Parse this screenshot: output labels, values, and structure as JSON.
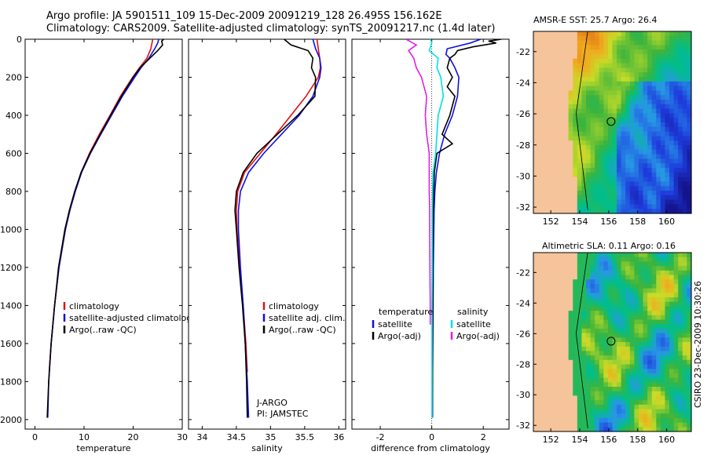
{
  "header": {
    "line1": "Argo profile: JA 5901511_109 15-Dec-2009 20091219_128 26.495S 156.162E",
    "line2": "Climatology: CARS2009. Satellite-adjusted climatology: synTS_20091217.nc (1.4d later)"
  },
  "side_note": "CSIRO 23-Dec-2009 10:30:26",
  "credit": {
    "line1": "J-ARGO",
    "line2": "PI: JAMSTEC"
  },
  "colors": {
    "climatology": "#e01010",
    "satellite": "#1010e0",
    "argo": "#000000",
    "sat_sal": "#00e0e0",
    "argo_sal": "#e020e0"
  },
  "chart_data": [
    {
      "id": "temperature",
      "type": "line",
      "xlabel": "temperature",
      "ylabel": "",
      "xlim": [
        -2,
        30
      ],
      "ylim": [
        2050,
        0
      ],
      "xticks": [
        0,
        10,
        20,
        30
      ],
      "yticks": [
        0,
        200,
        400,
        600,
        800,
        1000,
        1200,
        1400,
        1600,
        1800,
        2000
      ],
      "legend": [
        "climatology",
        "satellite-adjusted climatology",
        "Argo(..raw -QC)"
      ],
      "series": [
        {
          "name": "climatology",
          "color": "#e01010",
          "depth": [
            0,
            50,
            100,
            150,
            200,
            300,
            400,
            500,
            600,
            700,
            800,
            900,
            1000,
            1200,
            1400,
            1600,
            1750
          ],
          "values": [
            24.0,
            23.6,
            22.8,
            21.3,
            19.9,
            17.4,
            15.3,
            13.1,
            11.1,
            9.4,
            8.2,
            7.1,
            6.2,
            4.9,
            4.0,
            3.3,
            2.9
          ]
        },
        {
          "name": "satellite-adjusted climatology",
          "color": "#1010e0",
          "depth": [
            0,
            20,
            50,
            100,
            150,
            200,
            300,
            400,
            500,
            600,
            700,
            800,
            900,
            1000,
            1200,
            1400,
            1600,
            1800,
            1990
          ],
          "values": [
            25.2,
            25.0,
            24.4,
            23.2,
            21.6,
            20.3,
            17.8,
            15.6,
            13.4,
            11.3,
            9.5,
            8.2,
            7.1,
            6.2,
            4.9,
            4.0,
            3.3,
            2.8,
            2.6
          ]
        },
        {
          "name": "Argo(..raw -QC)",
          "color": "#000000",
          "depth": [
            0,
            10,
            30,
            60,
            100,
            150,
            200,
            300,
            400,
            500,
            600,
            700,
            800,
            900,
            1000,
            1200,
            1400,
            1600,
            1800,
            1990
          ],
          "values": [
            26.2,
            25.8,
            26.0,
            25.0,
            23.4,
            21.4,
            20.0,
            17.6,
            15.4,
            13.3,
            11.2,
            9.4,
            8.1,
            7.0,
            6.1,
            4.8,
            4.0,
            3.3,
            2.8,
            2.5
          ]
        }
      ]
    },
    {
      "id": "salinity",
      "type": "line",
      "xlabel": "salinity",
      "xlim": [
        33.8,
        36.1
      ],
      "ylim": [
        2050,
        0
      ],
      "xticks": [
        34,
        34.5,
        35,
        35.5,
        36
      ],
      "legend": [
        "climatology",
        "satellite adj. clim.",
        "Argo(..raw -QC)"
      ],
      "series": [
        {
          "name": "climatology",
          "color": "#e01010",
          "depth": [
            0,
            50,
            100,
            150,
            200,
            300,
            400,
            500,
            600,
            700,
            800,
            900,
            1000,
            1200,
            1400,
            1600,
            1750
          ],
          "values": [
            35.68,
            35.7,
            35.72,
            35.73,
            35.7,
            35.52,
            35.3,
            35.08,
            34.85,
            34.62,
            34.52,
            34.5,
            34.51,
            34.55,
            34.6,
            34.64,
            34.66
          ]
        },
        {
          "name": "satellite adj. clim.",
          "color": "#1010e0",
          "depth": [
            0,
            50,
            100,
            150,
            200,
            300,
            400,
            500,
            600,
            700,
            800,
            900,
            1000,
            1200,
            1400,
            1600,
            1800,
            1990
          ],
          "values": [
            35.62,
            35.66,
            35.72,
            35.74,
            35.72,
            35.62,
            35.42,
            35.16,
            34.9,
            34.68,
            34.56,
            34.53,
            34.53,
            34.56,
            34.6,
            34.63,
            34.66,
            34.68
          ]
        },
        {
          "name": "Argo(..raw -QC)",
          "color": "#000000",
          "depth": [
            0,
            30,
            60,
            100,
            150,
            200,
            300,
            400,
            500,
            600,
            700,
            800,
            900,
            1000,
            1200,
            1400,
            1600,
            1800,
            1990
          ],
          "values": [
            35.2,
            35.3,
            35.55,
            35.62,
            35.6,
            35.66,
            35.65,
            35.4,
            35.1,
            34.8,
            34.6,
            34.5,
            34.48,
            34.5,
            34.54,
            34.59,
            34.63,
            34.65,
            34.66
          ]
        }
      ]
    },
    {
      "id": "difference",
      "type": "line",
      "xlabel": "difference from climatology",
      "xlim": [
        -3.1,
        3.0
      ],
      "ylim": [
        2050,
        0
      ],
      "xticks": [
        -2,
        0,
        2
      ],
      "legend_temperature": {
        "heading": "temperature",
        "items": [
          "satellite",
          "Argo(-adj)"
        ]
      },
      "legend_salinity": {
        "heading": "salinity",
        "items": [
          "satellite",
          "Argo(-adj)"
        ]
      },
      "series": [
        {
          "name": "temperature satellite",
          "color": "#1010e0",
          "depth": [
            0,
            20,
            50,
            80,
            100,
            150,
            200,
            300,
            400,
            500,
            600,
            700,
            800,
            900,
            1000,
            1200,
            1400,
            1600,
            1800,
            1990
          ],
          "values": [
            1.9,
            1.5,
            0.6,
            0.55,
            0.7,
            0.9,
            1.05,
            1.0,
            0.8,
            0.5,
            0.3,
            0.18,
            0.12,
            0.09,
            0.08,
            0.06,
            0.05,
            0.04,
            0.03,
            0.03
          ]
        },
        {
          "name": "temperature Argo(-adj)",
          "color": "#000000",
          "depth": [
            0,
            10,
            20,
            40,
            60,
            80,
            100,
            150,
            200,
            250,
            300,
            400,
            500,
            550,
            600,
            700,
            800,
            900,
            1000,
            1200,
            1400,
            1600,
            1800,
            1990
          ],
          "values": [
            2.7,
            2.2,
            2.5,
            1.6,
            1.0,
            0.9,
            0.7,
            0.6,
            0.8,
            0.6,
            0.9,
            0.7,
            0.4,
            0.8,
            0.2,
            0.1,
            0.08,
            0.06,
            0.05,
            0.04,
            0.04,
            0.03,
            0.03,
            0.02
          ]
        },
        {
          "name": "salinity satellite",
          "color": "#00e0e0",
          "depth": [
            0,
            20,
            60,
            100,
            150,
            200,
            300,
            400,
            500,
            600,
            700,
            800,
            900,
            1000,
            1200,
            1400,
            1600,
            1800,
            1990
          ],
          "values": [
            -0.05,
            0.0,
            -0.1,
            0.25,
            0.2,
            0.35,
            0.45,
            0.25,
            0.2,
            0.15,
            0.05,
            0.03,
            0.02,
            0.02,
            0.02,
            0.01,
            0.01,
            0.01,
            0.01
          ]
        },
        {
          "name": "salinity Argo(-adj)",
          "color": "#e020e0",
          "depth": [
            0,
            30,
            60,
            100,
            150,
            200,
            300,
            400,
            500,
            600,
            700,
            800,
            900,
            1000,
            1200,
            1400,
            1500
          ],
          "values": [
            -1.0,
            -0.6,
            -0.9,
            -0.7,
            -0.6,
            -0.4,
            -0.2,
            -0.25,
            -0.2,
            -0.1,
            -0.1,
            -0.1,
            -0.08,
            -0.08,
            -0.07,
            -0.06,
            -0.06
          ]
        }
      ]
    },
    {
      "id": "sst_map",
      "type": "heatmap",
      "title": "AMSR-E SST: 25.7 Argo: 26.4",
      "xlim": [
        150.8,
        161.7
      ],
      "ylim": [
        -32.4,
        -20.7
      ],
      "xticks": [
        152,
        154,
        156,
        158,
        160
      ],
      "yticks": [
        -22,
        -24,
        -26,
        -28,
        -30,
        -32
      ],
      "argo_position": [
        156.162,
        -26.495
      ]
    },
    {
      "id": "sla_map",
      "type": "heatmap",
      "title": "Altimetric SLA: 0.11 Argo: 0.16",
      "xlim": [
        150.8,
        161.7
      ],
      "ylim": [
        -32.4,
        -20.7
      ],
      "xticks": [
        152,
        154,
        156,
        158,
        160
      ],
      "yticks": [
        -22,
        -24,
        -26,
        -28,
        -30,
        -32
      ],
      "argo_position": [
        156.162,
        -26.495
      ]
    }
  ]
}
